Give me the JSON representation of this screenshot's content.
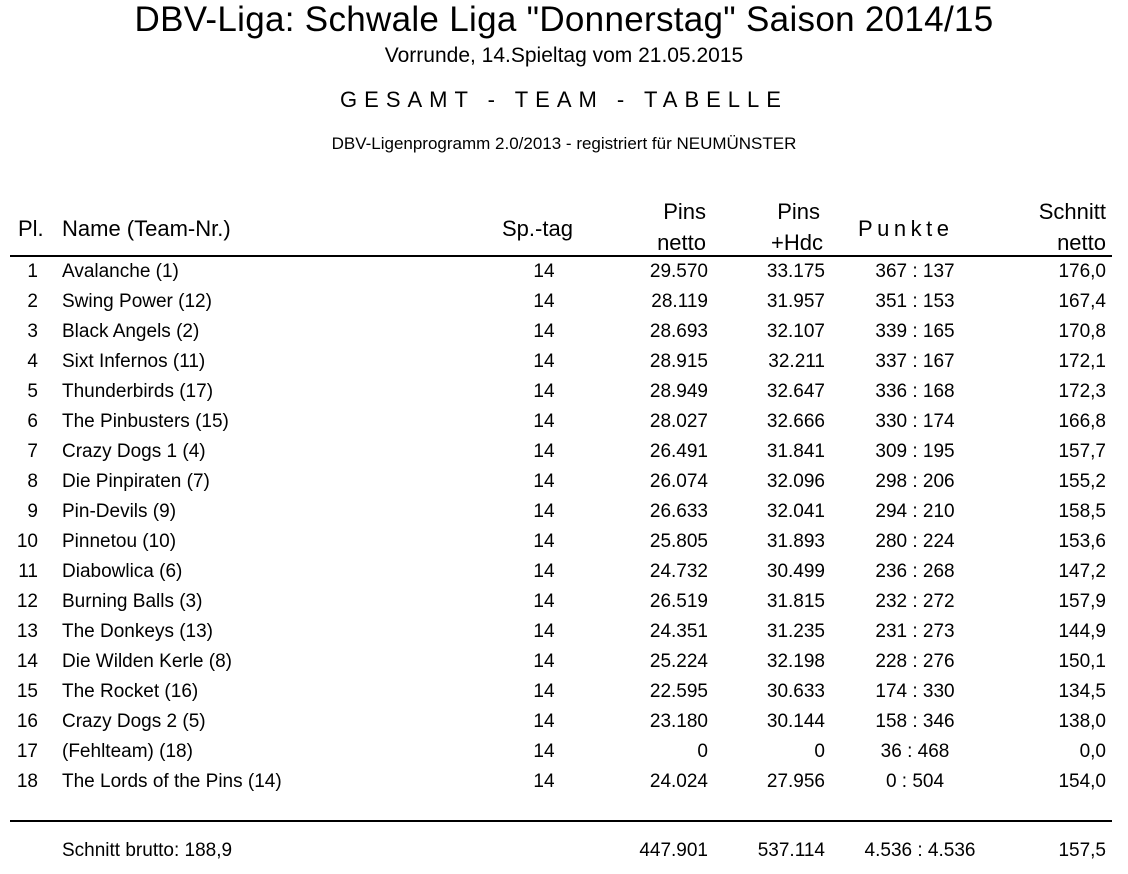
{
  "header": {
    "title": "DBV-Liga: Schwale Liga \"Donnerstag\" Saison 2014/15",
    "subtitle": "Vorrunde, 14.Spieltag vom 21.05.2015",
    "section": "GESAMT - TEAM - TABELLE",
    "program": "DBV-Ligenprogramm 2.0/2013 - registriert für NEUMÜNSTER"
  },
  "columns": {
    "pl": "Pl.",
    "name": "Name  (Team-Nr.)",
    "spieltag": "Sp.-tag",
    "pins_netto_1": "Pins",
    "pins_netto_2": "netto",
    "pins_hdc_1": "Pins",
    "pins_hdc_2": "+Hdc",
    "punkte": "Punkte",
    "schnitt_1": "Schnitt",
    "schnitt_2": "netto"
  },
  "rows": [
    {
      "pl": "1",
      "name": "Avalanche  (1)",
      "sp": "14",
      "pins_netto": "29.570",
      "pins_hdc": "33.175",
      "punkte": "367 :  137",
      "schnitt": "176,0"
    },
    {
      "pl": "2",
      "name": "Swing Power  (12)",
      "sp": "14",
      "pins_netto": "28.119",
      "pins_hdc": "31.957",
      "punkte": "351 :  153",
      "schnitt": "167,4"
    },
    {
      "pl": "3",
      "name": "Black Angels  (2)",
      "sp": "14",
      "pins_netto": "28.693",
      "pins_hdc": "32.107",
      "punkte": "339 :  165",
      "schnitt": "170,8"
    },
    {
      "pl": "4",
      "name": "Sixt Infernos  (11)",
      "sp": "14",
      "pins_netto": "28.915",
      "pins_hdc": "32.211",
      "punkte": "337 :  167",
      "schnitt": "172,1"
    },
    {
      "pl": "5",
      "name": "Thunderbirds  (17)",
      "sp": "14",
      "pins_netto": "28.949",
      "pins_hdc": "32.647",
      "punkte": "336 :  168",
      "schnitt": "172,3"
    },
    {
      "pl": "6",
      "name": "The Pinbusters  (15)",
      "sp": "14",
      "pins_netto": "28.027",
      "pins_hdc": "32.666",
      "punkte": "330 :  174",
      "schnitt": "166,8"
    },
    {
      "pl": "7",
      "name": "Crazy Dogs 1  (4)",
      "sp": "14",
      "pins_netto": "26.491",
      "pins_hdc": "31.841",
      "punkte": "309 :  195",
      "schnitt": "157,7"
    },
    {
      "pl": "8",
      "name": "Die Pinpiraten  (7)",
      "sp": "14",
      "pins_netto": "26.074",
      "pins_hdc": "32.096",
      "punkte": "298 :  206",
      "schnitt": "155,2"
    },
    {
      "pl": "9",
      "name": "Pin-Devils  (9)",
      "sp": "14",
      "pins_netto": "26.633",
      "pins_hdc": "32.041",
      "punkte": "294 :  210",
      "schnitt": "158,5"
    },
    {
      "pl": "10",
      "name": "Pinnetou  (10)",
      "sp": "14",
      "pins_netto": "25.805",
      "pins_hdc": "31.893",
      "punkte": "280 :  224",
      "schnitt": "153,6"
    },
    {
      "pl": "11",
      "name": "Diabowlica  (6)",
      "sp": "14",
      "pins_netto": "24.732",
      "pins_hdc": "30.499",
      "punkte": "236 :  268",
      "schnitt": "147,2"
    },
    {
      "pl": "12",
      "name": "Burning Balls  (3)",
      "sp": "14",
      "pins_netto": "26.519",
      "pins_hdc": "31.815",
      "punkte": "232 :  272",
      "schnitt": "157,9"
    },
    {
      "pl": "13",
      "name": "The Donkeys  (13)",
      "sp": "14",
      "pins_netto": "24.351",
      "pins_hdc": "31.235",
      "punkte": "231 :  273",
      "schnitt": "144,9"
    },
    {
      "pl": "14",
      "name": "Die Wilden Kerle  (8)",
      "sp": "14",
      "pins_netto": "25.224",
      "pins_hdc": "32.198",
      "punkte": "228 :  276",
      "schnitt": "150,1"
    },
    {
      "pl": "15",
      "name": "The Rocket  (16)",
      "sp": "14",
      "pins_netto": "22.595",
      "pins_hdc": "30.633",
      "punkte": "174 :  330",
      "schnitt": "134,5"
    },
    {
      "pl": "16",
      "name": "Crazy Dogs 2  (5)",
      "sp": "14",
      "pins_netto": "23.180",
      "pins_hdc": "30.144",
      "punkte": "158 :  346",
      "schnitt": "138,0"
    },
    {
      "pl": "17",
      "name": "(Fehlteam)  (18)",
      "sp": "14",
      "pins_netto": "0",
      "pins_hdc": "0",
      "punkte": "36 :  468",
      "schnitt": "0,0"
    },
    {
      "pl": "18",
      "name": "The Lords of the Pins  (14)",
      "sp": "14",
      "pins_netto": "24.024",
      "pins_hdc": "27.956",
      "punkte": "0 :  504",
      "schnitt": "154,0"
    }
  ],
  "footer": {
    "schnitt_brutto": "Schnitt brutto: 188,9",
    "pins_netto": "447.901",
    "pins_hdc": "537.114",
    "punkte": "4.536 :  4.536",
    "schnitt": "157,5"
  }
}
